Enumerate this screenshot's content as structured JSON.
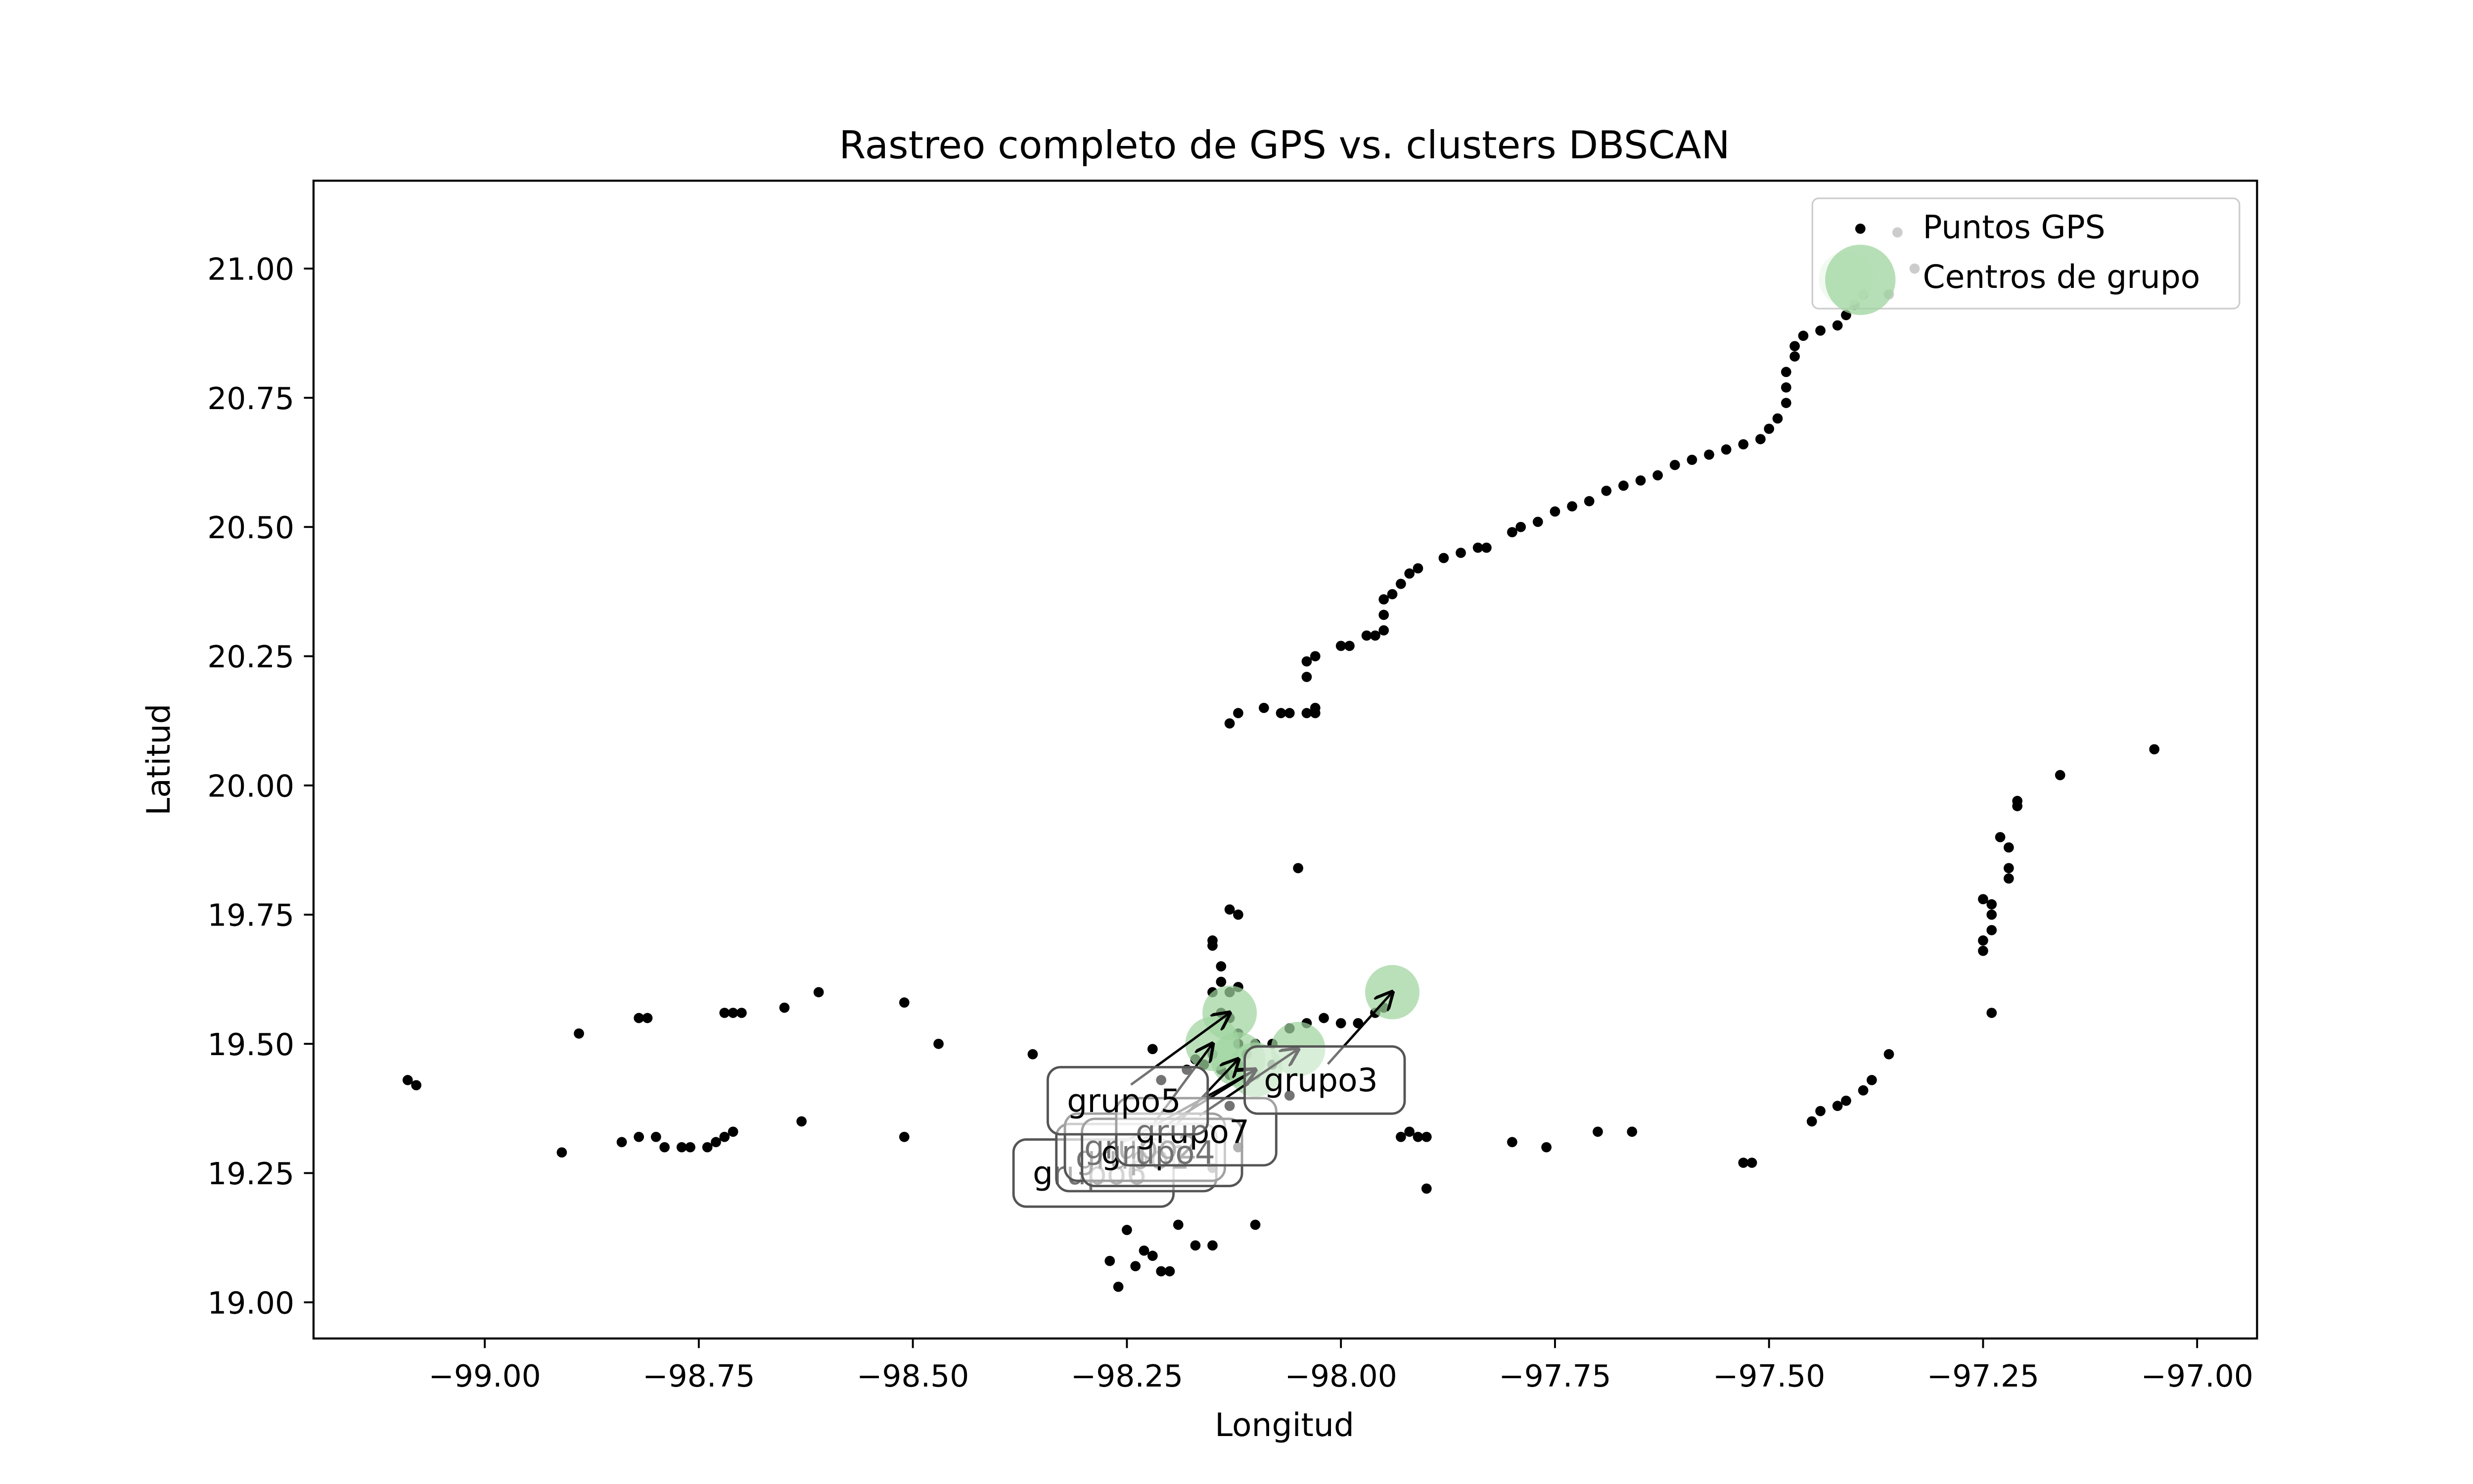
{
  "colors": {
    "points": "#000000",
    "centers": "#9fd49f",
    "annotation_box_edge": "#555555",
    "arrow": "#000000"
  },
  "chart_data": {
    "type": "scatter",
    "title": "Rastreo completo de GPS vs. clusters DBSCAN",
    "xlabel": "Longitud",
    "ylabel": "Latitud",
    "xlim": [
      -99.2,
      -96.93
    ],
    "ylim": [
      18.93,
      21.17
    ],
    "xticks": [
      -99.0,
      -98.75,
      -98.5,
      -98.25,
      -98.0,
      -97.75,
      -97.5,
      -97.25,
      -97.0
    ],
    "xtick_labels": [
      "−99.00",
      "−98.75",
      "−98.50",
      "−98.25",
      "−98.00",
      "−97.75",
      "−97.50",
      "−97.25",
      "−97.00"
    ],
    "yticks": [
      19.0,
      19.25,
      19.5,
      19.75,
      20.0,
      20.25,
      20.5,
      20.75,
      21.0
    ],
    "ytick_labels": [
      "19.00",
      "19.25",
      "19.50",
      "19.75",
      "20.00",
      "20.25",
      "20.50",
      "20.75",
      "21.00"
    ],
    "grid": false,
    "legend_position": "top-right",
    "legend": [
      "Puntos GPS",
      "Centros de grupo"
    ],
    "series": [
      {
        "name": "Puntos GPS",
        "points": [
          [
            -99.09,
            19.43
          ],
          [
            -99.08,
            19.42
          ],
          [
            -98.91,
            19.29
          ],
          [
            -98.89,
            19.52
          ],
          [
            -98.84,
            19.31
          ],
          [
            -98.82,
            19.55
          ],
          [
            -98.81,
            19.55
          ],
          [
            -98.82,
            19.32
          ],
          [
            -98.8,
            19.32
          ],
          [
            -98.79,
            19.3
          ],
          [
            -98.77,
            19.3
          ],
          [
            -98.76,
            19.3
          ],
          [
            -98.74,
            19.3
          ],
          [
            -98.73,
            19.31
          ],
          [
            -98.72,
            19.32
          ],
          [
            -98.71,
            19.33
          ],
          [
            -98.72,
            19.56
          ],
          [
            -98.71,
            19.56
          ],
          [
            -98.7,
            19.56
          ],
          [
            -98.65,
            19.57
          ],
          [
            -98.63,
            19.35
          ],
          [
            -98.61,
            19.6
          ],
          [
            -98.51,
            19.32
          ],
          [
            -98.51,
            19.58
          ],
          [
            -98.47,
            19.5
          ],
          [
            -98.36,
            19.48
          ],
          [
            -98.27,
            19.08
          ],
          [
            -98.26,
            19.03
          ],
          [
            -98.25,
            19.14
          ],
          [
            -98.24,
            19.07
          ],
          [
            -98.23,
            19.1
          ],
          [
            -98.22,
            19.09
          ],
          [
            -98.21,
            19.06
          ],
          [
            -98.2,
            19.06
          ],
          [
            -98.19,
            19.15
          ],
          [
            -98.17,
            19.11
          ],
          [
            -98.15,
            19.11
          ],
          [
            -98.15,
            19.26
          ],
          [
            -98.12,
            19.3
          ],
          [
            -98.1,
            19.15
          ],
          [
            -98.22,
            19.49
          ],
          [
            -98.21,
            19.43
          ],
          [
            -98.18,
            19.45
          ],
          [
            -98.17,
            19.47
          ],
          [
            -98.16,
            19.46
          ],
          [
            -98.15,
            19.48
          ],
          [
            -98.14,
            19.45
          ],
          [
            -98.13,
            19.44
          ],
          [
            -98.12,
            19.46
          ],
          [
            -98.11,
            19.43
          ],
          [
            -98.1,
            19.44
          ],
          [
            -98.13,
            19.38
          ],
          [
            -98.11,
            19.48
          ],
          [
            -98.12,
            19.5
          ],
          [
            -98.15,
            19.7
          ],
          [
            -98.15,
            19.69
          ],
          [
            -98.14,
            19.65
          ],
          [
            -98.14,
            19.62
          ],
          [
            -98.13,
            19.6
          ],
          [
            -98.12,
            19.61
          ],
          [
            -98.15,
            19.6
          ],
          [
            -98.14,
            19.56
          ],
          [
            -98.13,
            19.55
          ],
          [
            -98.12,
            19.52
          ],
          [
            -98.1,
            19.5
          ],
          [
            -98.08,
            19.5
          ],
          [
            -98.06,
            19.53
          ],
          [
            -98.05,
            19.84
          ],
          [
            -98.04,
            19.54
          ],
          [
            -98.02,
            19.55
          ],
          [
            -98.0,
            19.54
          ],
          [
            -97.98,
            19.54
          ],
          [
            -97.96,
            19.56
          ],
          [
            -97.95,
            19.57
          ],
          [
            -98.13,
            19.76
          ],
          [
            -98.12,
            19.75
          ],
          [
            -98.06,
            19.4
          ],
          [
            -98.08,
            19.46
          ],
          [
            -97.93,
            19.32
          ],
          [
            -97.92,
            19.33
          ],
          [
            -97.91,
            19.32
          ],
          [
            -97.9,
            19.32
          ],
          [
            -97.9,
            19.22
          ],
          [
            -97.8,
            19.31
          ],
          [
            -97.76,
            19.3
          ],
          [
            -97.7,
            19.33
          ],
          [
            -97.66,
            19.33
          ],
          [
            -97.53,
            19.27
          ],
          [
            -97.52,
            19.27
          ],
          [
            -97.45,
            19.35
          ],
          [
            -97.44,
            19.37
          ],
          [
            -97.42,
            19.38
          ],
          [
            -97.41,
            19.39
          ],
          [
            -97.39,
            19.41
          ],
          [
            -97.38,
            19.43
          ],
          [
            -97.36,
            19.48
          ],
          [
            -97.24,
            19.56
          ],
          [
            -97.25,
            19.68
          ],
          [
            -97.25,
            19.7
          ],
          [
            -97.24,
            19.72
          ],
          [
            -97.24,
            19.75
          ],
          [
            -97.24,
            19.77
          ],
          [
            -97.25,
            19.78
          ],
          [
            -97.22,
            19.82
          ],
          [
            -97.22,
            19.84
          ],
          [
            -97.22,
            19.88
          ],
          [
            -97.23,
            19.9
          ],
          [
            -97.21,
            19.96
          ],
          [
            -97.21,
            19.97
          ],
          [
            -97.16,
            20.02
          ],
          [
            -97.05,
            20.07
          ],
          [
            -98.13,
            20.12
          ],
          [
            -98.12,
            20.14
          ],
          [
            -98.09,
            20.15
          ],
          [
            -98.07,
            20.14
          ],
          [
            -98.06,
            20.14
          ],
          [
            -98.04,
            20.14
          ],
          [
            -98.03,
            20.15
          ],
          [
            -98.03,
            20.14
          ],
          [
            -98.04,
            20.21
          ],
          [
            -98.04,
            20.24
          ],
          [
            -98.03,
            20.25
          ],
          [
            -98.0,
            20.27
          ],
          [
            -97.99,
            20.27
          ],
          [
            -97.97,
            20.29
          ],
          [
            -97.96,
            20.29
          ],
          [
            -97.95,
            20.3
          ],
          [
            -97.95,
            20.33
          ],
          [
            -97.95,
            20.36
          ],
          [
            -97.94,
            20.37
          ],
          [
            -97.93,
            20.39
          ],
          [
            -97.92,
            20.41
          ],
          [
            -97.91,
            20.42
          ],
          [
            -97.88,
            20.44
          ],
          [
            -97.86,
            20.45
          ],
          [
            -97.84,
            20.46
          ],
          [
            -97.83,
            20.46
          ],
          [
            -97.8,
            20.49
          ],
          [
            -97.79,
            20.5
          ],
          [
            -97.77,
            20.51
          ],
          [
            -97.75,
            20.53
          ],
          [
            -97.73,
            20.54
          ],
          [
            -97.71,
            20.55
          ],
          [
            -97.69,
            20.57
          ],
          [
            -97.67,
            20.58
          ],
          [
            -97.65,
            20.59
          ],
          [
            -97.63,
            20.6
          ],
          [
            -97.61,
            20.62
          ],
          [
            -97.59,
            20.63
          ],
          [
            -97.57,
            20.64
          ],
          [
            -97.55,
            20.65
          ],
          [
            -97.53,
            20.66
          ],
          [
            -97.51,
            20.67
          ],
          [
            -97.5,
            20.69
          ],
          [
            -97.49,
            20.71
          ],
          [
            -97.48,
            20.74
          ],
          [
            -97.48,
            20.77
          ],
          [
            -97.48,
            20.8
          ],
          [
            -97.47,
            20.83
          ],
          [
            -97.47,
            20.85
          ],
          [
            -97.46,
            20.87
          ],
          [
            -97.44,
            20.88
          ],
          [
            -97.42,
            20.89
          ],
          [
            -97.41,
            20.91
          ],
          [
            -97.4,
            20.93
          ],
          [
            -97.39,
            20.95
          ],
          [
            -97.36,
            20.95
          ],
          [
            -97.35,
            21.07
          ],
          [
            -97.33,
            21.0
          ]
        ]
      },
      {
        "name": "Centros de grupo",
        "points": [
          [
            -98.13,
            19.56
          ],
          [
            -98.05,
            19.49
          ],
          [
            -97.94,
            19.6
          ],
          [
            -98.15,
            19.5
          ],
          [
            -98.12,
            19.47
          ],
          [
            -98.1,
            19.45
          ],
          [
            -97.41,
            20.98
          ]
        ]
      }
    ],
    "annotations": [
      {
        "label": "grupo5",
        "text_at": [
          -98.32,
          19.39
        ],
        "arrow_to": [
          -98.13,
          19.56
        ]
      },
      {
        "label": "grupo3",
        "text_at": [
          -98.09,
          19.43
        ],
        "arrow_to": [
          -97.94,
          19.6
        ]
      },
      {
        "label": "grupo7",
        "text_at": [
          -98.24,
          19.33
        ],
        "arrow_to": [
          -98.05,
          19.49
        ]
      },
      {
        "label": "grupo4",
        "text_at": [
          -98.28,
          19.29
        ],
        "arrow_to": [
          -98.12,
          19.47
        ]
      },
      {
        "label": "grupo2",
        "text_at": [
          -98.3,
          19.3
        ],
        "arrow_to": [
          -98.15,
          19.5
        ]
      },
      {
        "label": "grupo1",
        "text_at": [
          -98.31,
          19.28
        ],
        "arrow_to": [
          -98.1,
          19.45
        ]
      },
      {
        "label": "grupo6",
        "text_at": [
          -98.36,
          19.25
        ],
        "arrow_to": [
          -98.1,
          19.45
        ]
      }
    ]
  }
}
